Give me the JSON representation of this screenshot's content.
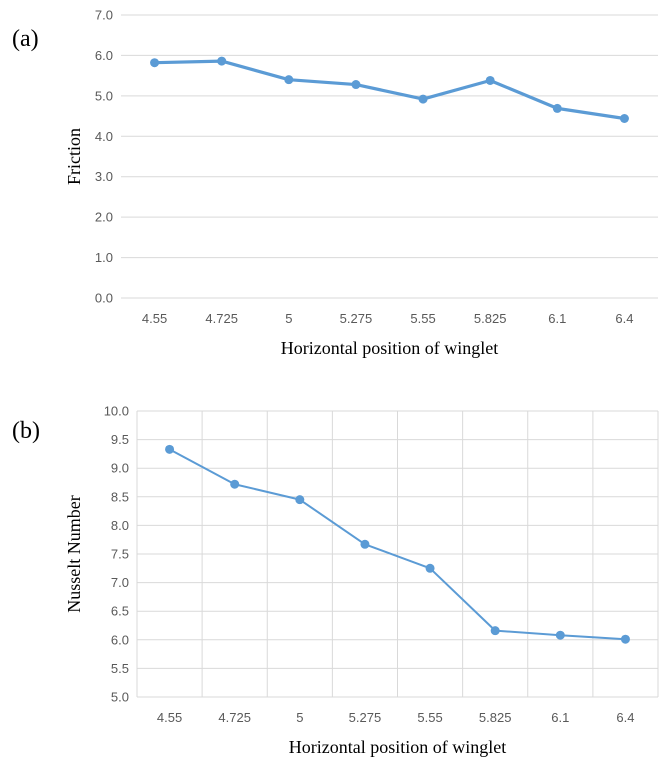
{
  "chart_data": [
    {
      "type": "line",
      "panel_label": "(a)",
      "categories": [
        "4.55",
        "4.725",
        "5",
        "5.275",
        "5.55",
        "5.825",
        "6.1",
        "6.4"
      ],
      "series": [
        {
          "values": [
            5.82,
            5.86,
            5.4,
            5.28,
            4.92,
            5.38,
            4.69,
            4.44
          ]
        }
      ],
      "xlabel": "Horizontal position of winglet",
      "ylabel": "Friction",
      "ylim": [
        0,
        7
      ],
      "yticks": [
        "0.0",
        "1.0",
        "2.0",
        "3.0",
        "4.0",
        "5.0",
        "6.0",
        "7.0"
      ],
      "grid": {
        "horizontal": true,
        "vertical": false
      },
      "color": "#5B9BD5",
      "legend": "none"
    },
    {
      "type": "line",
      "panel_label": "(b)",
      "categories": [
        "4.55",
        "4.725",
        "5",
        "5.275",
        "5.55",
        "5.825",
        "6.1",
        "6.4"
      ],
      "series": [
        {
          "values": [
            9.33,
            8.72,
            8.45,
            7.67,
            7.25,
            6.16,
            6.08,
            6.01
          ]
        }
      ],
      "xlabel": "Horizontal position of winglet",
      "ylabel": "Nusselt Number",
      "ylim": [
        5,
        10
      ],
      "yticks": [
        "5.0",
        "5.5",
        "6.0",
        "6.5",
        "7.0",
        "7.5",
        "8.0",
        "8.5",
        "9.0",
        "9.5",
        "10.0"
      ],
      "grid": {
        "horizontal": true,
        "vertical": true
      },
      "color": "#5B9BD5",
      "legend": "none"
    }
  ]
}
